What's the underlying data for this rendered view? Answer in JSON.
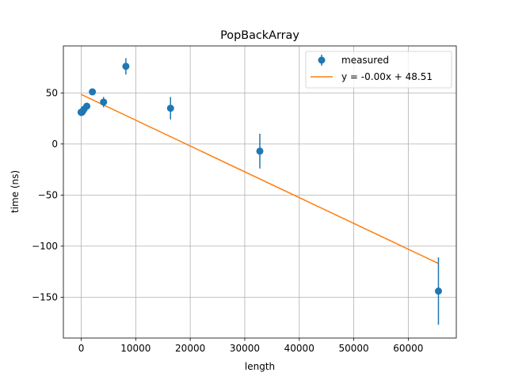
{
  "chart_data": {
    "type": "scatter",
    "title": "PopBackArray",
    "xlabel": "length",
    "ylabel": "time (ns)",
    "xlim": [
      -3276,
      68812
    ],
    "ylim": [
      -190,
      96
    ],
    "xticks": [
      0,
      10000,
      20000,
      30000,
      40000,
      50000,
      60000
    ],
    "yticks": [
      -150,
      -100,
      -50,
      0,
      50
    ],
    "xtick_labels": [
      "0",
      "10000",
      "20000",
      "30000",
      "40000",
      "50000",
      "60000"
    ],
    "ytick_labels": [
      "−150",
      "−100",
      "−50",
      "0",
      "50"
    ],
    "grid": true,
    "legend_position": "top-right",
    "series": [
      {
        "name": "measured",
        "kind": "errorbar",
        "color": "#1f77b4",
        "x": [
          1,
          2,
          4,
          8,
          16,
          32,
          64,
          128,
          256,
          512,
          1024,
          2048,
          4096,
          8192,
          16384,
          32768,
          65536
        ],
        "y": [
          31,
          31,
          31,
          31,
          31,
          31,
          31,
          31,
          32,
          34,
          37,
          51,
          41,
          76,
          35,
          -7,
          -144
        ],
        "yerr": [
          1,
          1,
          1,
          1,
          1,
          1,
          1,
          1,
          1,
          1,
          2,
          2,
          5,
          8,
          11,
          17,
          33
        ]
      },
      {
        "name": "y = -0.00x + 48.51",
        "kind": "line",
        "color": "#ff7f0e",
        "x": [
          1,
          65536
        ],
        "y": [
          48.51,
          -117.0
        ]
      }
    ]
  }
}
